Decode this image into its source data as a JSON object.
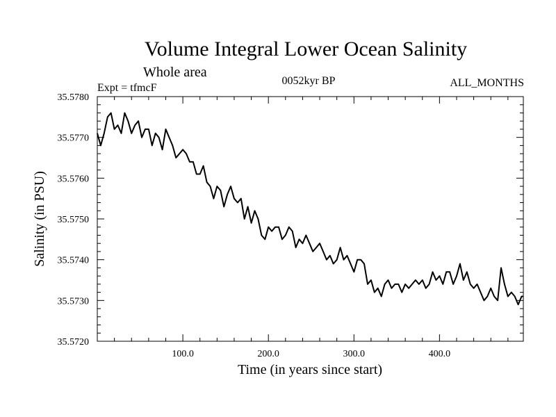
{
  "chart_data": {
    "type": "line",
    "title": "Volume Integral Lower Ocean Salinity",
    "subtitle": "Whole area",
    "annotations": {
      "experiment": "Expt = tfmcF",
      "period": "0052kyr BP",
      "months": "ALL_MONTHS"
    },
    "xlabel": "Time (in years since start)",
    "ylabel": "Salinity (in PSU)",
    "xlim": [
      0,
      498
    ],
    "ylim": [
      35.572,
      35.578
    ],
    "x_ticks": [
      100,
      200,
      300,
      400
    ],
    "x_tick_labels": [
      "100.0",
      "200.0",
      "300.0",
      "400.0"
    ],
    "y_ticks": [
      35.572,
      35.573,
      35.574,
      35.575,
      35.576,
      35.577,
      35.578
    ],
    "y_tick_labels": [
      "35.5720",
      "35.5730",
      "35.5740",
      "35.5750",
      "35.5760",
      "35.5770",
      "35.5780"
    ],
    "grid": false,
    "line_color": "#000000",
    "series": [
      {
        "x": [
          0,
          4,
          8,
          12,
          16,
          20,
          24,
          28,
          32,
          36,
          40,
          44,
          48,
          52,
          56,
          60,
          64,
          68,
          72,
          76,
          80,
          84,
          88,
          92,
          96,
          100,
          104,
          108,
          112,
          116,
          120,
          124,
          128,
          132,
          136,
          140,
          144,
          148,
          152,
          156,
          160,
          164,
          168,
          172,
          176,
          180,
          184,
          188,
          192,
          196,
          200,
          204,
          208,
          212,
          216,
          220,
          224,
          228,
          232,
          236,
          240,
          244,
          248,
          252,
          256,
          260,
          264,
          268,
          272,
          276,
          280,
          284,
          288,
          292,
          296,
          300,
          304,
          308,
          312,
          316,
          320,
          324,
          328,
          332,
          336,
          340,
          344,
          348,
          352,
          356,
          360,
          364,
          368,
          372,
          376,
          380,
          384,
          388,
          392,
          396,
          400,
          404,
          408,
          412,
          416,
          420,
          424,
          428,
          432,
          436,
          440,
          444,
          448,
          452,
          456,
          460,
          464,
          468,
          472,
          476,
          480,
          484,
          488,
          492,
          496,
          498
        ],
        "y": [
          35.5771,
          35.5768,
          35.5771,
          35.5775,
          35.5776,
          35.5772,
          35.5773,
          35.5771,
          35.5776,
          35.5774,
          35.5771,
          35.5773,
          35.5774,
          35.577,
          35.5772,
          35.5772,
          35.5768,
          35.5771,
          35.577,
          35.5767,
          35.5772,
          35.577,
          35.5768,
          35.5765,
          35.5766,
          35.5767,
          35.5766,
          35.5764,
          35.5764,
          35.5761,
          35.5761,
          35.5763,
          35.5759,
          35.5758,
          35.5755,
          35.5758,
          35.5757,
          35.5753,
          35.5756,
          35.5758,
          35.5755,
          35.5754,
          35.5755,
          35.575,
          35.5753,
          35.5749,
          35.5752,
          35.575,
          35.5746,
          35.5745,
          35.5748,
          35.5747,
          35.5748,
          35.5748,
          35.5745,
          35.5746,
          35.5748,
          35.5747,
          35.5743,
          35.5745,
          35.5744,
          35.5746,
          35.5744,
          35.5742,
          35.5743,
          35.5744,
          35.5742,
          35.574,
          35.5741,
          35.5739,
          35.574,
          35.5743,
          35.574,
          35.5741,
          35.5739,
          35.5737,
          35.574,
          35.574,
          35.5739,
          35.5734,
          35.5735,
          35.5732,
          35.5733,
          35.5731,
          35.5734,
          35.5735,
          35.5733,
          35.5734,
          35.5734,
          35.5732,
          35.5734,
          35.5733,
          35.5734,
          35.5735,
          35.5734,
          35.5735,
          35.5733,
          35.5734,
          35.5737,
          35.5735,
          35.5736,
          35.5734,
          35.5737,
          35.5737,
          35.5734,
          35.5736,
          35.5739,
          35.5735,
          35.5737,
          35.5734,
          35.5733,
          35.5734,
          35.5732,
          35.573,
          35.5731,
          35.5733,
          35.5731,
          35.573,
          35.5738,
          35.5734,
          35.5731,
          35.5732,
          35.5731,
          35.5729,
          35.5731,
          35.5731
        ]
      }
    ]
  }
}
